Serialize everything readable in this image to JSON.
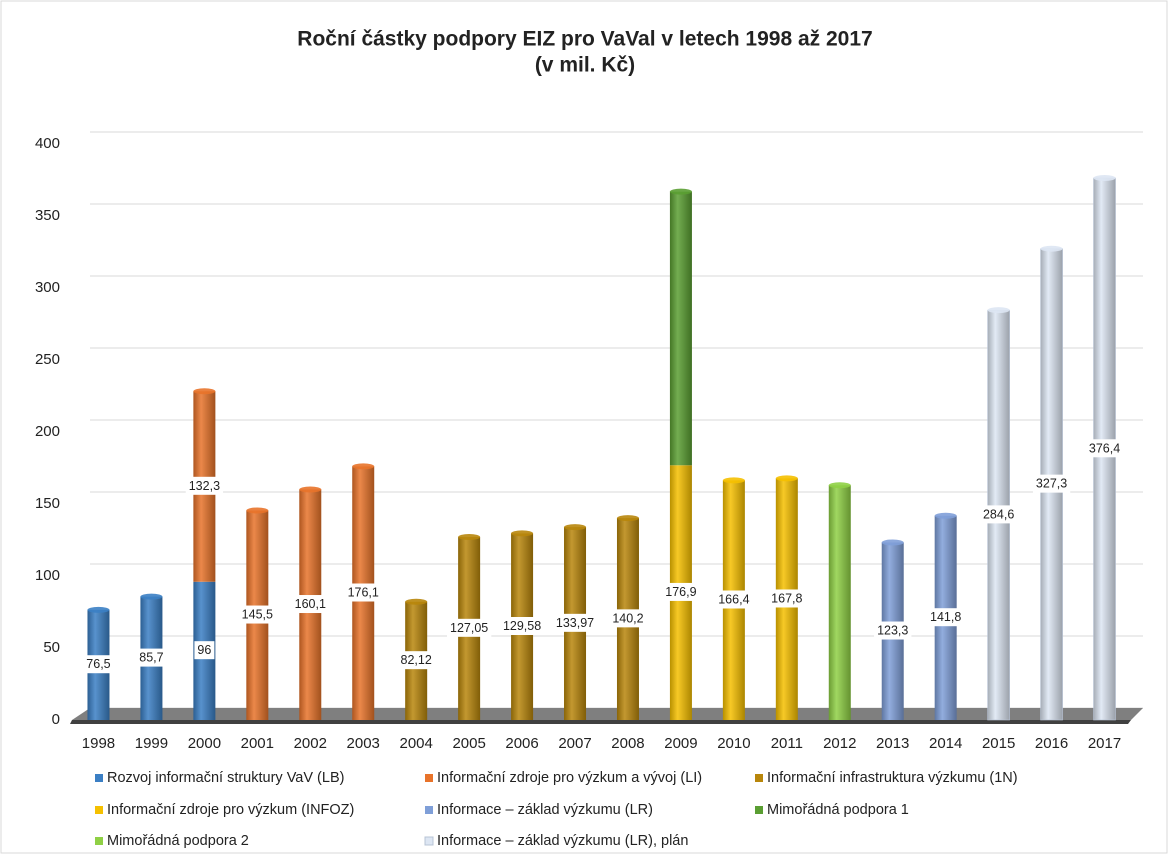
{
  "chart_data": {
    "type": "stacked_bar",
    "title": "Roční částky podpory EIZ pro VaVal v letech 1998 až 2017",
    "subtitle": "(v mil. Kč)",
    "categories": [
      "1998",
      "1999",
      "2000",
      "2001",
      "2002",
      "2003",
      "2004",
      "2005",
      "2006",
      "2007",
      "2008",
      "2009",
      "2010",
      "2011",
      "2012",
      "2013",
      "2014",
      "2015",
      "2016",
      "2017"
    ],
    "ylim": [
      0,
      400
    ],
    "yticks": [
      0,
      50,
      100,
      150,
      200,
      250,
      300,
      350,
      400
    ],
    "grid": true,
    "legend": "bottom",
    "series": [
      {
        "name": "Rozvoj informační struktury VaV (LB)",
        "color": "#3b7fc4",
        "values": [
          76.5,
          85.7,
          96,
          null,
          null,
          null,
          null,
          null,
          null,
          null,
          null,
          null,
          null,
          null,
          null,
          null,
          null,
          null,
          null,
          null
        ],
        "value_labels": [
          "76,5",
          "85,7",
          "96",
          null,
          null,
          null,
          null,
          null,
          null,
          null,
          null,
          null,
          null,
          null,
          null,
          null,
          null,
          null,
          null,
          null
        ]
      },
      {
        "name": "Informační zdroje pro výzkum a vývoj (LI)",
        "color": "#e8732a",
        "values": [
          null,
          null,
          132.3,
          145.5,
          160.1,
          176.1,
          null,
          null,
          null,
          null,
          null,
          null,
          null,
          null,
          null,
          null,
          null,
          null,
          null,
          null
        ],
        "value_labels": [
          null,
          null,
          "132,3",
          "145,5",
          "160,1",
          "176,1",
          null,
          null,
          null,
          null,
          null,
          null,
          null,
          null,
          null,
          null,
          null,
          null,
          null,
          null
        ]
      },
      {
        "name": "Informační infrastruktura výzkumu (1N)",
        "color": "#b8860b",
        "values": [
          null,
          null,
          null,
          null,
          null,
          null,
          82.12,
          127.05,
          129.58,
          133.97,
          140.2,
          null,
          null,
          null,
          null,
          null,
          null,
          null,
          null,
          null
        ],
        "value_labels": [
          null,
          null,
          null,
          null,
          null,
          null,
          "82,12",
          "127,05",
          "129,58",
          "133,97",
          "140,2",
          null,
          null,
          null,
          null,
          null,
          null,
          null,
          null,
          null
        ]
      },
      {
        "name": "Informační zdroje pro výzkum (INFOZ)",
        "color": "#f5c000",
        "values": [
          null,
          null,
          null,
          null,
          null,
          null,
          null,
          null,
          null,
          null,
          null,
          176.9,
          166.4,
          167.8,
          null,
          null,
          null,
          null,
          null,
          null
        ],
        "value_labels": [
          null,
          null,
          null,
          null,
          null,
          null,
          null,
          null,
          null,
          null,
          null,
          "176,9",
          "166,4",
          "167,8",
          null,
          null,
          null,
          null,
          null,
          null
        ]
      },
      {
        "name": "Informace – základ výzkumu (LR)",
        "color": "#7f9fd8",
        "values": [
          null,
          null,
          null,
          null,
          null,
          null,
          null,
          null,
          null,
          null,
          null,
          null,
          null,
          null,
          null,
          123.3,
          141.8,
          null,
          null,
          null
        ],
        "value_labels": [
          null,
          null,
          null,
          null,
          null,
          null,
          null,
          null,
          null,
          null,
          null,
          null,
          null,
          null,
          null,
          "123,3",
          "141,8",
          null,
          null,
          null
        ]
      },
      {
        "name": "Mimořádná podpora 1",
        "color": "#5a9e32",
        "values": [
          null,
          null,
          null,
          null,
          null,
          null,
          null,
          null,
          null,
          null,
          null,
          190,
          null,
          null,
          null,
          null,
          null,
          null,
          null,
          null
        ]
      },
      {
        "name": "Mimořádná podpora 2",
        "color": "#8fd045",
        "values": [
          null,
          null,
          null,
          null,
          null,
          null,
          null,
          null,
          null,
          null,
          null,
          null,
          null,
          null,
          163,
          null,
          null,
          null,
          null,
          null
        ]
      },
      {
        "name": "Informace – základ výzkumu (LR), plán",
        "color": "#dde6f3",
        "values": [
          null,
          null,
          null,
          null,
          null,
          null,
          null,
          null,
          null,
          null,
          null,
          null,
          null,
          null,
          null,
          null,
          null,
          284.6,
          327.3,
          376.4
        ],
        "value_labels": [
          null,
          null,
          null,
          null,
          null,
          null,
          null,
          null,
          null,
          null,
          null,
          null,
          null,
          null,
          null,
          null,
          null,
          "284,6",
          "327,3",
          "376,4"
        ]
      }
    ]
  }
}
